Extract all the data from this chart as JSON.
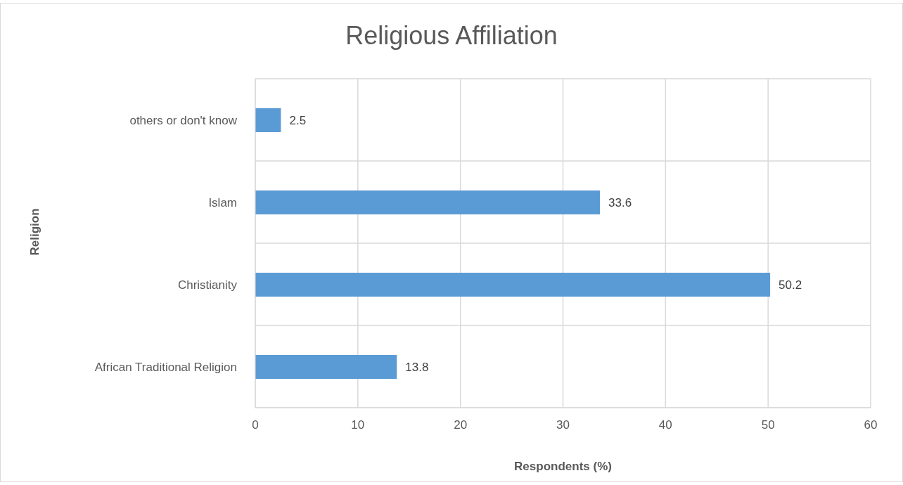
{
  "chart_data": {
    "type": "bar",
    "orientation": "horizontal",
    "title": "Religious Affiliation",
    "xlabel": "Respondents (%)",
    "ylabel": "Religion",
    "categories": [
      "others or don't know",
      "Islam",
      "Christianity",
      "African Traditional Religion"
    ],
    "values": [
      2.5,
      33.6,
      50.2,
      13.8
    ],
    "color": "#5b9bd5",
    "xlim": [
      0,
      60
    ],
    "xticks": [
      0,
      10,
      20,
      30,
      40,
      50,
      60
    ],
    "grid": true,
    "data_labels": true
  }
}
